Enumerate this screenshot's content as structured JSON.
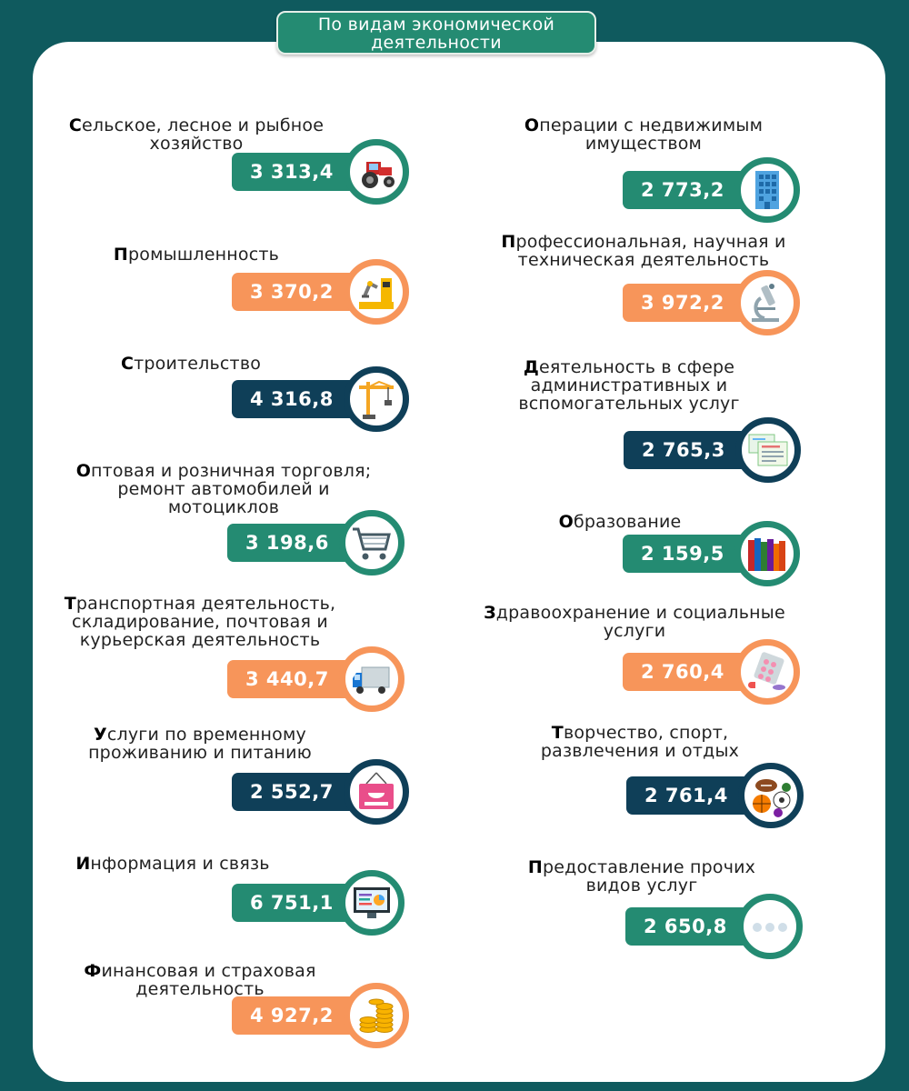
{
  "header": {
    "line1": "По видам экономической",
    "line2": "деятельности"
  },
  "colors": {
    "green": "#248b72",
    "orange": "#f7955a",
    "navy": "#0f3f58",
    "background": "#0f5a5e"
  },
  "items": [
    {
      "first": "С",
      "rest1": "ельское, лесное и рыбное",
      "line2": "хозяйство",
      "line3": "",
      "value": "3 313,4",
      "color": "green",
      "icon": "tractor-icon"
    },
    {
      "first": "П",
      "rest1": "ромышленность",
      "line2": "",
      "line3": "",
      "value": "3 370,2",
      "color": "orange",
      "icon": "robot-arm-icon"
    },
    {
      "first": "С",
      "rest1": "троительство",
      "line2": "",
      "line3": "",
      "value": "4 316,8",
      "color": "navy",
      "icon": "crane-icon"
    },
    {
      "first": "О",
      "rest1": "птовая и розничная торговля;",
      "line2": "ремонт автомобилей и",
      "line3": "мотоциклов",
      "value": "3 198,6",
      "color": "green",
      "icon": "shopping-cart-icon"
    },
    {
      "first": "Т",
      "rest1": "ранспортная деятельность,",
      "line2": "складирование, почтовая и",
      "line3": "курьерская деятельность",
      "value": "3 440,7",
      "color": "orange",
      "icon": "truck-icon"
    },
    {
      "first": "У",
      "rest1": "слуги по временному",
      "line2": "проживанию и питанию",
      "line3": "",
      "value": "2 552,7",
      "color": "navy",
      "icon": "open-sign-icon"
    },
    {
      "first": "И",
      "rest1": "нформация и связь",
      "line2": "",
      "line3": "",
      "value": "6 751,1",
      "color": "green",
      "icon": "monitor-icon"
    },
    {
      "first": "Ф",
      "rest1": "инансовая  и страховая",
      "line2": "деятельность",
      "line3": "",
      "value": "4 927,2",
      "color": "orange",
      "icon": "coins-icon"
    },
    {
      "first": "О",
      "rest1": "перации с недвижимым",
      "line2": "имуществом",
      "line3": "",
      "value": "2 773,2",
      "color": "green",
      "icon": "building-icon"
    },
    {
      "first": "П",
      "rest1": "рофессиональная, научная и",
      "line2": "техническая деятельность",
      "line3": "",
      "value": "3 972,2",
      "color": "orange",
      "icon": "microscope-icon"
    },
    {
      "first": "Д",
      "rest1": "еятельность в сфере",
      "line2": "административных и",
      "line3": "вспомогательных услуг",
      "value": "2 765,3",
      "color": "navy",
      "icon": "documents-icon"
    },
    {
      "first": "О",
      "rest1": "бразование",
      "line2": "",
      "line3": "",
      "value": "2 159,5",
      "color": "green",
      "icon": "books-icon"
    },
    {
      "first": "З",
      "rest1": "дравоохранение и социальные",
      "line2": "услуги",
      "line3": "",
      "value": "2 760,4",
      "color": "orange",
      "icon": "pills-icon"
    },
    {
      "first": "Т",
      "rest1": "ворчество, спорт,",
      "line2": "развлечения и отдых",
      "line3": "",
      "value": "2 761,4",
      "color": "navy",
      "icon": "sports-balls-icon"
    },
    {
      "first": "П",
      "rest1": "редоставление прочих",
      "line2": "видов услуг",
      "line3": "",
      "value": "2 650,8",
      "color": "green",
      "icon": "more-dots-icon"
    }
  ]
}
